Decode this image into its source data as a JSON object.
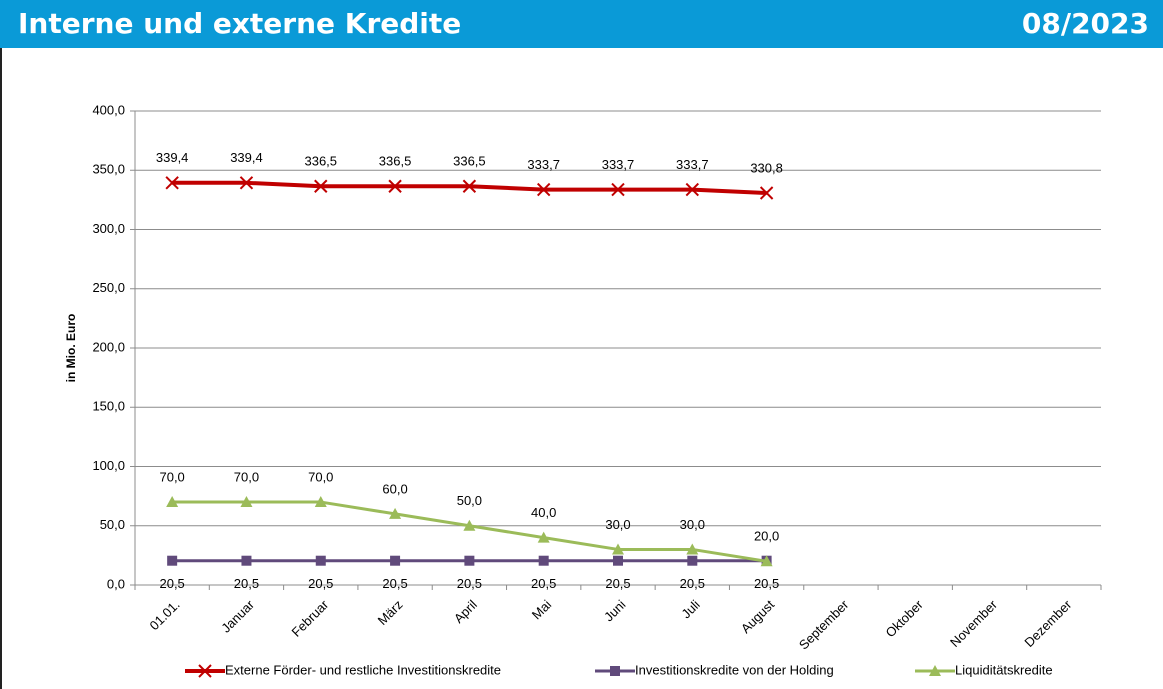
{
  "header": {
    "title": "Interne und externe Kredite",
    "date": "08/2023"
  },
  "chart_data": {
    "type": "line",
    "y_label": "in Mio. Euro",
    "categories": [
      "01.01.",
      "Januar",
      "Februar",
      "März",
      "April",
      "Mai",
      "Juni",
      "Juli",
      "August",
      "September",
      "Oktober",
      "November",
      "Dezember"
    ],
    "series": [
      {
        "name": "Externe Förder- und restliche Investitionskredite",
        "color": "#c00000",
        "marker": "x",
        "values": [
          339.4,
          339.4,
          336.5,
          336.5,
          336.5,
          333.7,
          333.7,
          333.7,
          330.8,
          null,
          null,
          null,
          null
        ],
        "value_labels": [
          "339,4",
          "339,4",
          "336,5",
          "336,5",
          "336,5",
          "333,7",
          "333,7",
          "333,7",
          "330,8",
          null,
          null,
          null,
          null
        ]
      },
      {
        "name": "Investitionskredite von der Holding",
        "color": "#604a7b",
        "marker": "square",
        "values": [
          20.5,
          20.5,
          20.5,
          20.5,
          20.5,
          20.5,
          20.5,
          20.5,
          20.5,
          null,
          null,
          null,
          null
        ],
        "value_labels": [
          "20,5",
          "20,5",
          "20,5",
          "20,5",
          "20,5",
          "20,5",
          "20,5",
          "20,5",
          "20,5",
          null,
          null,
          null,
          null
        ]
      },
      {
        "name": "Liquiditätskredite",
        "color": "#9bbb59",
        "marker": "triangle",
        "values": [
          70.0,
          70.0,
          70.0,
          60.0,
          50.0,
          40.0,
          30.0,
          30.0,
          20.0,
          null,
          null,
          null,
          null
        ],
        "value_labels": [
          "70,0",
          "70,0",
          "70,0",
          "60,0",
          "50,0",
          "40,0",
          "30,0",
          "30,0",
          "20,0",
          null,
          null,
          null,
          null
        ]
      }
    ],
    "ylim": [
      0,
      400
    ],
    "yticks": [
      {
        "value": 0,
        "label": "0,0"
      },
      {
        "value": 50,
        "label": "50,0"
      },
      {
        "value": 100,
        "label": "100,0"
      },
      {
        "value": 150,
        "label": "150,0"
      },
      {
        "value": 200,
        "label": "200,0"
      },
      {
        "value": 250,
        "label": "250,0"
      },
      {
        "value": 300,
        "label": "300,0"
      },
      {
        "value": 350,
        "label": "350,0"
      },
      {
        "value": 400,
        "label": "400,0"
      }
    ],
    "grid": true,
    "legend": "bottom"
  }
}
